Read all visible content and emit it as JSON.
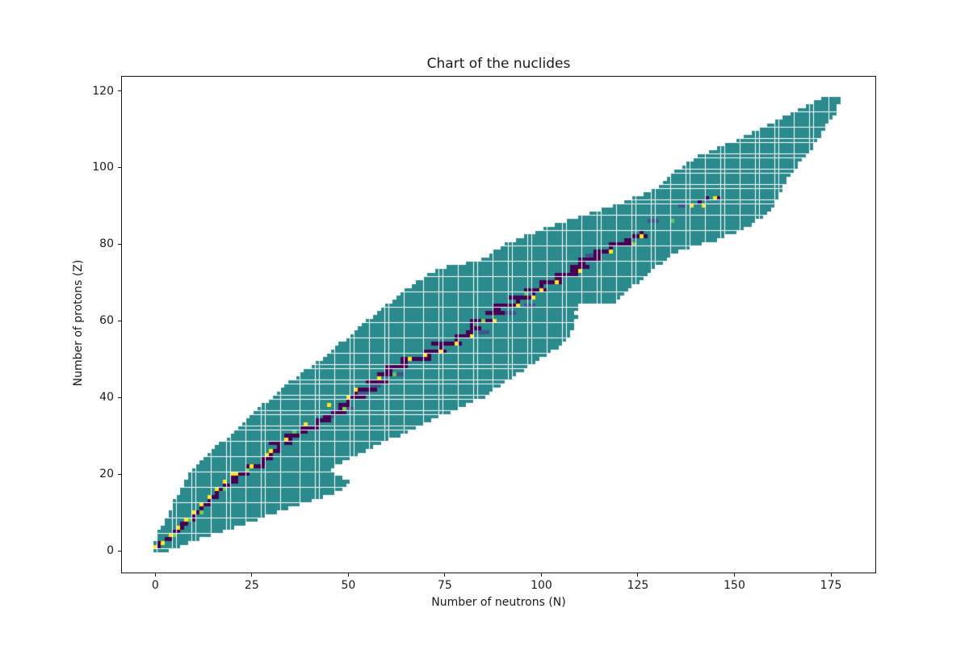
{
  "title": "Chart of the nuclides",
  "chart_data": {
    "type": "heatmap",
    "title": "Chart of the nuclides",
    "xlabel": "Number of neutrons (N)",
    "ylabel": "Number of protons (Z)",
    "x_ticks": [
      0,
      25,
      50,
      75,
      100,
      125,
      150,
      175
    ],
    "y_ticks": [
      0,
      20,
      40,
      60,
      80,
      100,
      120
    ],
    "xlim": [
      -8.85,
      186.7
    ],
    "ylim": [
      -5.9,
      123.9
    ],
    "grid": false,
    "legend": "none",
    "colors": {
      "band": "#2a8a8c",
      "stable": "#440154",
      "yellow": "#fde725",
      "green": "#5ec962",
      "light_green": "#7ad151",
      "blue": "#3d568c",
      "axis": "#1a1a1a",
      "background": "#ffffff"
    },
    "band": {
      "z_start": 0,
      "nmin": [
        0,
        0,
        0,
        1,
        1,
        1,
        2,
        3,
        3,
        4,
        4,
        5,
        5,
        5,
        6,
        7,
        7,
        8,
        8,
        9,
        9,
        10,
        11,
        12,
        13,
        14,
        15,
        16,
        17,
        19,
        20,
        21,
        22,
        23,
        24,
        25,
        26,
        27,
        28,
        30,
        31,
        32,
        33,
        34,
        35,
        37,
        38,
        39,
        41,
        42,
        44,
        45,
        46,
        47,
        48,
        50,
        51,
        52,
        53,
        54,
        55,
        57,
        58,
        59,
        60,
        62,
        63,
        64,
        65,
        67,
        68,
        70,
        71,
        73,
        76,
        81,
        85,
        87,
        88,
        90,
        91,
        94,
        96,
        99,
        101,
        104,
        107,
        110,
        113,
        116,
        119,
        122,
        124,
        127,
        129,
        131,
        132,
        133,
        134,
        135,
        137,
        138,
        140,
        141,
        144,
        146,
        148,
        151,
        153,
        155,
        157,
        159,
        161,
        163,
        165,
        167,
        169,
        171,
        173
      ],
      "nmax": [
        3,
        6,
        8,
        11,
        14,
        17,
        20,
        23,
        26,
        28,
        31,
        34,
        37,
        40,
        43,
        46,
        48,
        49,
        50,
        48,
        46,
        45,
        46,
        48,
        50,
        52,
        54,
        56,
        58,
        60,
        63,
        65,
        67,
        69,
        71,
        73,
        76,
        78,
        80,
        82,
        85,
        86,
        87,
        89,
        90,
        92,
        93,
        95,
        96,
        98,
        99,
        101,
        102,
        104,
        105,
        106,
        107,
        107,
        108,
        108,
        108,
        109,
        108,
        109,
        109,
        119,
        120,
        121,
        122,
        123,
        125,
        126,
        127,
        128,
        129,
        131,
        132,
        133,
        135,
        138,
        141,
        145,
        147,
        150,
        152,
        154,
        155,
        157,
        158,
        159,
        160,
        160,
        161,
        161,
        162,
        162,
        163,
        163,
        164,
        165,
        166,
        166,
        167,
        168,
        169,
        170,
        170,
        171,
        172,
        172,
        173,
        173,
        174,
        175,
        176,
        176,
        176,
        177,
        177
      ]
    },
    "stable_runs": [
      [
        1,
        0,
        2
      ],
      [
        2,
        1,
        2
      ],
      [
        3,
        3,
        2
      ],
      [
        4,
        5,
        1
      ],
      [
        5,
        5,
        2
      ],
      [
        6,
        6,
        2
      ],
      [
        7,
        7,
        2
      ],
      [
        8,
        8,
        3
      ],
      [
        9,
        10,
        1
      ],
      [
        10,
        10,
        3
      ],
      [
        11,
        12,
        1
      ],
      [
        12,
        12,
        3
      ],
      [
        13,
        14,
        1
      ],
      [
        14,
        14,
        3
      ],
      [
        15,
        16,
        1
      ],
      [
        16,
        16,
        3
      ],
      [
        17,
        18,
        2
      ],
      [
        18,
        20,
        2
      ],
      [
        19,
        20,
        2
      ],
      [
        20,
        20,
        5
      ],
      [
        21,
        24,
        1
      ],
      [
        22,
        24,
        5
      ],
      [
        23,
        28,
        1
      ],
      [
        24,
        28,
        3
      ],
      [
        25,
        30,
        1
      ],
      [
        26,
        30,
        3
      ],
      [
        27,
        32,
        1
      ],
      [
        28,
        30,
        3
      ],
      [
        28,
        34,
        2
      ],
      [
        29,
        34,
        2
      ],
      [
        30,
        34,
        4
      ],
      [
        31,
        38,
        2
      ],
      [
        32,
        38,
        5
      ],
      [
        33,
        42,
        1
      ],
      [
        34,
        42,
        4
      ],
      [
        35,
        44,
        2
      ],
      [
        36,
        46,
        4
      ],
      [
        37,
        48,
        2
      ],
      [
        38,
        48,
        3
      ],
      [
        39,
        50,
        1
      ],
      [
        40,
        50,
        5
      ],
      [
        41,
        52,
        1
      ],
      [
        42,
        53,
        5
      ],
      [
        44,
        55,
        6
      ],
      [
        45,
        58,
        1
      ],
      [
        46,
        58,
        5
      ],
      [
        47,
        60,
        2
      ],
      [
        48,
        60,
        6
      ],
      [
        49,
        64,
        2
      ],
      [
        50,
        64,
        8
      ],
      [
        51,
        70,
        2
      ],
      [
        52,
        70,
        6
      ],
      [
        53,
        74,
        1
      ],
      [
        54,
        72,
        8
      ],
      [
        55,
        78,
        1
      ],
      [
        56,
        78,
        5
      ],
      [
        57,
        81,
        2
      ],
      [
        58,
        82,
        3
      ],
      [
        59,
        82,
        1
      ],
      [
        60,
        82,
        6
      ],
      [
        62,
        86,
        5
      ],
      [
        63,
        88,
        2
      ],
      [
        64,
        88,
        6
      ],
      [
        65,
        94,
        1
      ],
      [
        66,
        92,
        6
      ],
      [
        67,
        98,
        1
      ],
      [
        68,
        96,
        6
      ],
      [
        69,
        100,
        1
      ],
      [
        70,
        100,
        6
      ],
      [
        71,
        104,
        2
      ],
      [
        72,
        104,
        6
      ],
      [
        73,
        108,
        2
      ],
      [
        74,
        108,
        5
      ],
      [
        75,
        110,
        2
      ],
      [
        76,
        110,
        6
      ],
      [
        77,
        114,
        2
      ],
      [
        78,
        114,
        5
      ],
      [
        79,
        118,
        1
      ],
      [
        80,
        118,
        6
      ],
      [
        81,
        122,
        2
      ],
      [
        82,
        124,
        4
      ],
      [
        83,
        126,
        1
      ],
      [
        90,
        142,
        1
      ],
      [
        91,
        141,
        1
      ],
      [
        92,
        143,
        1
      ],
      [
        92,
        146,
        1
      ]
    ],
    "accents": {
      "yellow": [
        [
          0,
          1
        ],
        [
          2,
          2
        ],
        [
          4,
          4
        ],
        [
          6,
          6
        ],
        [
          8,
          8
        ],
        [
          10,
          10
        ],
        [
          12,
          12
        ],
        [
          14,
          14
        ],
        [
          16,
          16
        ],
        [
          18,
          18
        ],
        [
          20,
          20
        ],
        [
          21,
          20
        ],
        [
          25,
          22
        ],
        [
          29,
          25
        ],
        [
          30,
          26
        ],
        [
          34,
          29
        ],
        [
          39,
          33
        ],
        [
          45,
          38
        ],
        [
          50,
          40
        ],
        [
          52,
          42
        ],
        [
          58,
          45
        ],
        [
          66,
          50
        ],
        [
          70,
          51
        ],
        [
          74,
          52
        ],
        [
          78,
          54
        ],
        [
          82,
          56
        ],
        [
          88,
          60
        ],
        [
          94,
          64
        ],
        [
          98,
          66
        ],
        [
          100,
          68
        ],
        [
          104,
          70
        ],
        [
          110,
          73
        ],
        [
          118,
          78
        ],
        [
          126,
          82
        ],
        [
          139,
          90
        ],
        [
          142,
          90
        ],
        [
          145,
          92
        ]
      ],
      "green": [
        [
          5,
          4
        ],
        [
          9,
          8
        ],
        [
          12,
          10
        ],
        [
          18,
          16
        ],
        [
          24,
          21
        ],
        [
          36,
          31
        ],
        [
          49,
          37
        ],
        [
          62,
          46
        ],
        [
          85,
          60
        ],
        [
          96,
          67
        ],
        [
          124,
          80
        ],
        [
          134,
          86
        ]
      ],
      "blue_runs": [
        [
          35,
          44,
          3
        ],
        [
          37,
          50,
          2
        ],
        [
          41,
          52,
          4
        ],
        [
          43,
          56,
          3
        ],
        [
          46,
          62,
          3
        ],
        [
          52,
          72,
          3
        ],
        [
          57,
          84,
          3
        ],
        [
          62,
          90,
          4
        ],
        [
          64,
          96,
          3
        ],
        [
          68,
          99,
          3
        ],
        [
          72,
          106,
          3
        ],
        [
          77,
          112,
          2
        ],
        [
          80,
          119,
          3
        ],
        [
          86,
          128,
          3
        ],
        [
          90,
          136,
          2
        ]
      ]
    }
  }
}
